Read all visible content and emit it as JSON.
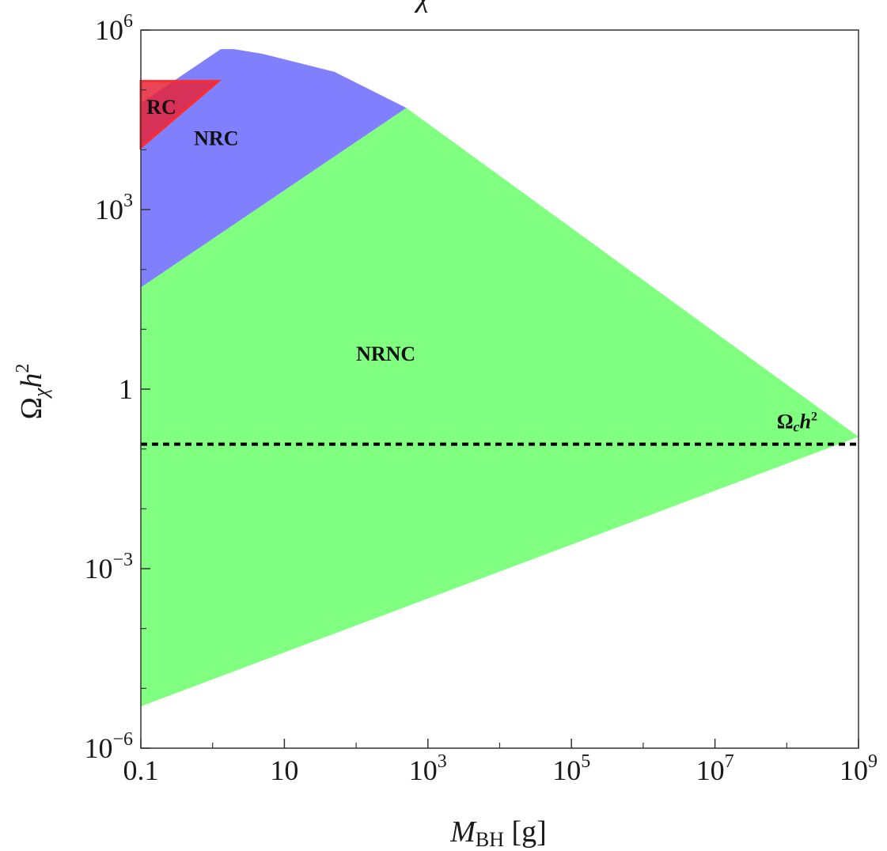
{
  "chart_data": {
    "type": "area",
    "title": "χ",
    "xlabel": "M_BH [g]",
    "ylabel": "Ω_χ h²",
    "x_scale": "log",
    "y_scale": "log",
    "xlim": [
      0.1,
      1000000000
    ],
    "ylim": [
      1e-06,
      1000000
    ],
    "x_ticks": [
      {
        "value": 0.1,
        "base": "0.1",
        "exp": ""
      },
      {
        "value": 10,
        "base": "10",
        "exp": ""
      },
      {
        "value": 1000,
        "base": "10",
        "exp": "3"
      },
      {
        "value": 100000,
        "base": "10",
        "exp": "5"
      },
      {
        "value": 10000000,
        "base": "10",
        "exp": "7"
      },
      {
        "value": 1000000000,
        "base": "10",
        "exp": "9"
      }
    ],
    "y_ticks": [
      {
        "value": 1e-06,
        "base": "10",
        "exp": "−6"
      },
      {
        "value": 0.001,
        "base": "10",
        "exp": "−3"
      },
      {
        "value": 1,
        "base": "1",
        "exp": ""
      },
      {
        "value": 1000,
        "base": "10",
        "exp": "3"
      },
      {
        "value": 1000000,
        "base": "10",
        "exp": "6"
      }
    ],
    "regions": [
      {
        "name": "NRNC",
        "label": "NRNC",
        "color": "#80ff80",
        "polygon": [
          [
            0.1,
            5e-06
          ],
          [
            1000000000,
            0.16
          ],
          [
            1000000000,
            0.16
          ],
          [
            500,
            50000
          ],
          [
            0.1,
            50
          ]
        ],
        "label_at": [
          100,
          3
        ]
      },
      {
        "name": "NRC",
        "label": "NRC",
        "color": "#8080ff",
        "polygon": [
          [
            0.1,
            50
          ],
          [
            500,
            50000
          ],
          [
            50,
            200000
          ],
          [
            5,
            400000
          ],
          [
            2,
            480000
          ],
          [
            1.3,
            480000
          ],
          [
            0.1,
            60000
          ]
        ],
        "label_at": [
          0.55,
          12000
        ]
      },
      {
        "name": "RC",
        "label": "RC",
        "color": "#e8233a",
        "polygon": [
          [
            0.1,
            11000
          ],
          [
            1.2,
            140000
          ],
          [
            0.1,
            140000
          ]
        ],
        "label_at": [
          0.12,
          40000
        ]
      }
    ],
    "reference_line": {
      "label": "Ω",
      "label_sub": "c",
      "label_suffix": "h",
      "label_sup": "2",
      "y": 0.12,
      "style": "dotted"
    }
  }
}
